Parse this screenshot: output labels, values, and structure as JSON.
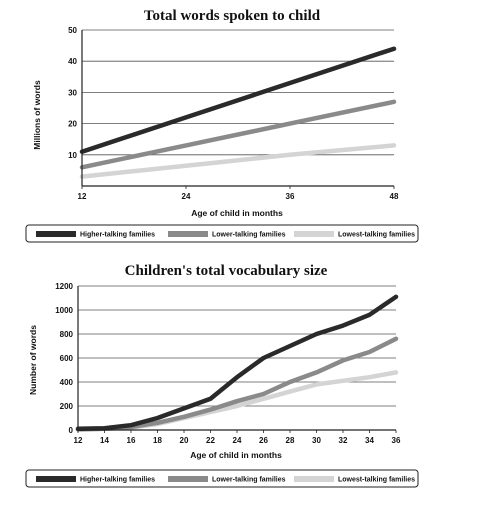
{
  "chart_data": [
    {
      "type": "line",
      "title": "Total words spoken to child",
      "xlabel": "Age of child in months",
      "ylabel": "Millions of words",
      "x": [
        12,
        24,
        36,
        48
      ],
      "xticks": [
        "12",
        "24",
        "36",
        "48"
      ],
      "yticks": [
        "10",
        "20",
        "30",
        "40",
        "50"
      ],
      "xlim": [
        12,
        48
      ],
      "ylim": [
        0,
        50
      ],
      "grid": "horizontal",
      "legend_position": "bottom",
      "series": [
        {
          "name": "Higher-talking families",
          "values": [
            11,
            22,
            33,
            44
          ],
          "color": "#2a2a2a"
        },
        {
          "name": "Lower-talking families",
          "values": [
            6,
            13,
            20,
            27
          ],
          "color": "#8a8a8a"
        },
        {
          "name": "Lowest-talking families",
          "values": [
            3,
            6.5,
            10,
            13
          ],
          "color": "#d4d4d4"
        }
      ]
    },
    {
      "type": "line",
      "title": "Children's total vocabulary size",
      "xlabel": "Age of child in months",
      "ylabel": "Number of words",
      "x": [
        12,
        14,
        16,
        18,
        20,
        22,
        24,
        26,
        28,
        30,
        32,
        34,
        36
      ],
      "xticks": [
        "12",
        "14",
        "16",
        "18",
        "20",
        "22",
        "24",
        "26",
        "28",
        "30",
        "32",
        "34",
        "36"
      ],
      "yticks": [
        "0",
        "200",
        "400",
        "600",
        "800",
        "1000",
        "1200"
      ],
      "xlim": [
        12,
        36
      ],
      "ylim": [
        0,
        1200
      ],
      "grid": "horizontal",
      "legend_position": "bottom",
      "series": [
        {
          "name": "Higher-talking families",
          "values": [
            10,
            15,
            40,
            100,
            180,
            260,
            440,
            600,
            700,
            800,
            870,
            960,
            1110
          ],
          "color": "#2a2a2a"
        },
        {
          "name": "Lower-talking families",
          "values": [
            5,
            10,
            25,
            60,
            110,
            170,
            240,
            300,
            400,
            480,
            580,
            650,
            760
          ],
          "color": "#8a8a8a"
        },
        {
          "name": "Lowest-talking families",
          "values": [
            5,
            10,
            20,
            50,
            100,
            150,
            200,
            260,
            320,
            380,
            410,
            440,
            480
          ],
          "color": "#d4d4d4"
        }
      ]
    }
  ]
}
